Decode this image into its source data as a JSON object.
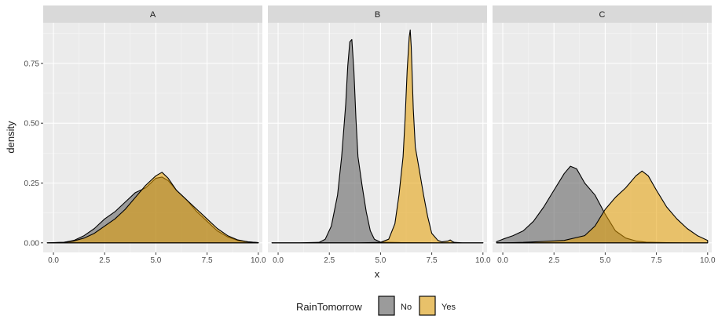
{
  "chart_data": {
    "type": "area",
    "facets": [
      "A",
      "B",
      "C"
    ],
    "xlabel": "x",
    "ylabel": "density",
    "xlim": [
      -0.5,
      10.2
    ],
    "ylim": [
      -0.04,
      0.92
    ],
    "x_ticks": [
      "0.0",
      "2.5",
      "5.0",
      "7.5",
      "10.0"
    ],
    "x_tick_values": [
      0,
      2.5,
      5,
      7.5,
      10
    ],
    "y_ticks": [
      "0.00",
      "0.25",
      "0.50",
      "0.75"
    ],
    "y_tick_values": [
      0,
      0.25,
      0.5,
      0.75
    ],
    "legend": {
      "title": "RainTomorrow",
      "position": "bottom",
      "entries": [
        {
          "label": "No",
          "color": "#595959"
        },
        {
          "label": "Yes",
          "color": "#E69F00"
        }
      ]
    },
    "series_colors": {
      "No": "#595959",
      "Yes": "#E69F00"
    },
    "panels": [
      {
        "facet": "A",
        "series": [
          {
            "name": "No",
            "x": [
              -0.3,
              0.5,
              1.0,
              1.5,
              2.0,
              2.5,
              3.0,
              3.5,
              4.0,
              4.5,
              5.0,
              5.3,
              5.6,
              6.0,
              6.5,
              7.0,
              7.5,
              8.0,
              8.5,
              9.0,
              9.5,
              10.0
            ],
            "y": [
              0,
              0.002,
              0.01,
              0.03,
              0.06,
              0.1,
              0.13,
              0.17,
              0.21,
              0.23,
              0.27,
              0.275,
              0.26,
              0.22,
              0.18,
              0.13,
              0.09,
              0.05,
              0.025,
              0.01,
              0.004,
              0.001
            ]
          },
          {
            "name": "Yes",
            "x": [
              -0.3,
              0.5,
              1.0,
              1.5,
              2.0,
              2.5,
              3.0,
              3.5,
              4.0,
              4.5,
              5.0,
              5.3,
              5.6,
              6.0,
              6.5,
              7.0,
              7.5,
              8.0,
              8.5,
              9.0,
              9.5,
              10.0
            ],
            "y": [
              0,
              0.002,
              0.008,
              0.02,
              0.04,
              0.07,
              0.1,
              0.14,
              0.19,
              0.24,
              0.28,
              0.295,
              0.27,
              0.22,
              0.18,
              0.14,
              0.1,
              0.06,
              0.03,
              0.012,
              0.004,
              0.001
            ]
          }
        ]
      },
      {
        "facet": "B",
        "series": [
          {
            "name": "No",
            "x": [
              -0.3,
              1.0,
              2.0,
              2.3,
              2.6,
              2.9,
              3.1,
              3.3,
              3.4,
              3.5,
              3.6,
              3.7,
              3.8,
              3.9,
              4.1,
              4.3,
              4.5,
              4.7,
              5.0,
              6.0,
              8.0,
              10.0
            ],
            "y": [
              0,
              0,
              0.002,
              0.015,
              0.07,
              0.2,
              0.36,
              0.58,
              0.74,
              0.84,
              0.85,
              0.72,
              0.52,
              0.36,
              0.24,
              0.13,
              0.05,
              0.015,
              0.003,
              0.001,
              0,
              0
            ]
          },
          {
            "name": "Yes",
            "x": [
              -0.3,
              4.0,
              5.0,
              5.4,
              5.7,
              5.9,
              6.1,
              6.2,
              6.3,
              6.4,
              6.45,
              6.5,
              6.6,
              6.7,
              6.9,
              7.1,
              7.3,
              7.5,
              7.8,
              8.0,
              8.3,
              8.4,
              8.5,
              8.6,
              9.0,
              10.0
            ],
            "y": [
              0,
              0,
              0.002,
              0.015,
              0.08,
              0.2,
              0.36,
              0.52,
              0.72,
              0.86,
              0.89,
              0.82,
              0.56,
              0.4,
              0.3,
              0.2,
              0.11,
              0.04,
              0.01,
              0.004,
              0.008,
              0.012,
              0.006,
              0.002,
              0,
              0
            ]
          }
        ]
      },
      {
        "facet": "C",
        "series": [
          {
            "name": "No",
            "x": [
              -0.3,
              0.0,
              0.5,
              1.0,
              1.5,
              2.0,
              2.5,
              3.0,
              3.3,
              3.6,
              4.0,
              4.5,
              5.0,
              5.5,
              6.0,
              6.5,
              7.0,
              8.0,
              9.0,
              10.0
            ],
            "y": [
              0.005,
              0.015,
              0.03,
              0.05,
              0.09,
              0.15,
              0.22,
              0.29,
              0.32,
              0.31,
              0.25,
              0.2,
              0.12,
              0.05,
              0.02,
              0.008,
              0.003,
              0.001,
              0,
              0
            ]
          },
          {
            "name": "Yes",
            "x": [
              -0.3,
              0.5,
              1.0,
              2.0,
              3.0,
              4.0,
              4.5,
              5.0,
              5.5,
              6.0,
              6.5,
              6.8,
              7.1,
              7.5,
              8.0,
              8.5,
              9.0,
              9.5,
              10.0
            ],
            "y": [
              0,
              0.001,
              0.002,
              0.006,
              0.01,
              0.03,
              0.07,
              0.14,
              0.19,
              0.23,
              0.28,
              0.3,
              0.28,
              0.22,
              0.15,
              0.1,
              0.06,
              0.03,
              0.01
            ]
          }
        ]
      }
    ]
  }
}
